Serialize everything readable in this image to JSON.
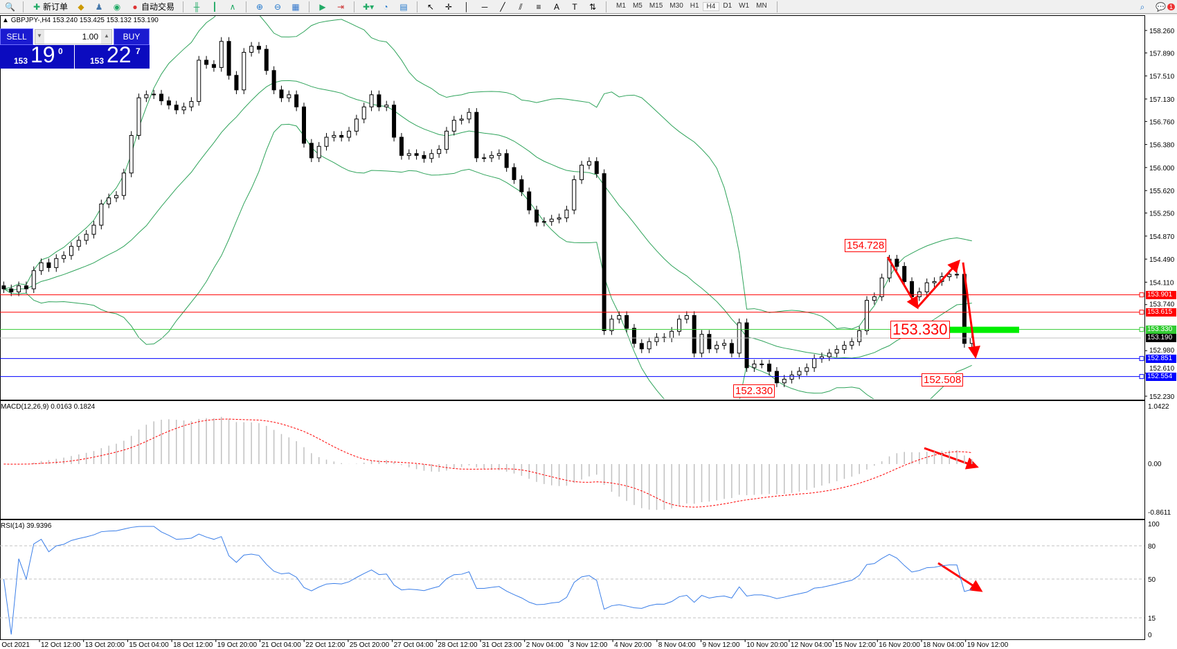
{
  "toolbar": {
    "new_order": "新订单",
    "auto_trading": "自动交易",
    "timeframes": [
      "M1",
      "M5",
      "M15",
      "M30",
      "H1",
      "H4",
      "D1",
      "W1",
      "MN"
    ],
    "active_timeframe": "H4",
    "notification_count": "1"
  },
  "chart": {
    "header": "GBPJPY-,H4  153.240 153.425 153.132 153.190",
    "symbol": "GBPJPY-",
    "timeframe": "H4"
  },
  "one_click": {
    "sell_label": "SELL",
    "buy_label": "BUY",
    "lot": "1.00",
    "sell_small": "153",
    "sell_big": "19",
    "sell_pip": "0",
    "buy_small": "153",
    "buy_big": "22",
    "buy_pip": "7"
  },
  "annotations": {
    "high": "154.728",
    "mid": "153.330",
    "low_right": "152.508",
    "low_left": "152.330"
  },
  "levels": [
    {
      "price": "153.901",
      "color": "#ff0000"
    },
    {
      "price": "153.615",
      "color": "#ff0000"
    },
    {
      "price": "153.330",
      "color": "#33cc33"
    },
    {
      "price": "153.190",
      "color": "#000000",
      "line": "#c0c0c0"
    },
    {
      "price": "152.851",
      "color": "#0000ff"
    },
    {
      "price": "152.554",
      "color": "#0000ff"
    }
  ],
  "chart_data": {
    "type": "candlestick",
    "price_axis": {
      "range": [
        152.23,
        158.26
      ],
      "ticks": [
        "158.260",
        "157.890",
        "157.510",
        "157.130",
        "156.760",
        "156.380",
        "156.000",
        "155.620",
        "155.250",
        "154.870",
        "154.490",
        "154.110",
        "153.740",
        "152.980",
        "152.610",
        "152.230"
      ]
    },
    "time_labels": [
      "1 Oct 2021",
      "12 Oct 12:00",
      "13 Oct 20:00",
      "15 Oct 04:00",
      "18 Oct 12:00",
      "19 Oct 20:00",
      "21 Oct 04:00",
      "22 Oct 12:00",
      "25 Oct 20:00",
      "27 Oct 04:00",
      "28 Oct 12:00",
      "31 Oct 23:00",
      "2 Nov 04:00",
      "3 Nov 12:00",
      "4 Nov 20:00",
      "8 Nov 04:00",
      "9 Nov 12:00",
      "10 Nov 20:00",
      "12 Nov 04:00",
      "15 Nov 12:00",
      "16 Nov 20:00",
      "18 Nov 04:00",
      "19 Nov 12:00"
    ],
    "close": [
      154.0,
      153.95,
      154.05,
      154.0,
      154.3,
      154.43,
      154.35,
      154.5,
      154.55,
      154.7,
      154.8,
      154.9,
      155.05,
      155.4,
      155.5,
      155.54,
      155.91,
      156.53,
      157.15,
      157.2,
      157.21,
      157.1,
      157.03,
      156.95,
      157.0,
      157.09,
      157.77,
      157.7,
      157.65,
      158.08,
      157.52,
      157.28,
      157.9,
      158.0,
      157.95,
      157.6,
      157.28,
      157.15,
      157.2,
      157.0,
      156.4,
      156.16,
      156.35,
      156.5,
      156.53,
      156.5,
      156.6,
      156.8,
      157.0,
      157.2,
      157.0,
      157.03,
      156.5,
      156.2,
      156.23,
      156.2,
      156.15,
      156.23,
      156.3,
      156.6,
      156.78,
      156.8,
      156.91,
      156.16,
      156.16,
      156.2,
      156.23,
      156.0,
      155.8,
      155.6,
      155.3,
      155.1,
      155.11,
      155.15,
      155.17,
      155.3,
      155.8,
      156.04,
      156.1,
      155.9,
      153.31,
      153.5,
      153.56,
      153.35,
      153.1,
      153.01,
      153.13,
      153.2,
      153.19,
      153.3,
      153.5,
      153.56,
      152.94,
      153.25,
      153.01,
      153.07,
      153.1,
      152.94,
      153.44,
      152.7,
      152.76,
      152.76,
      152.64,
      152.45,
      152.51,
      152.58,
      152.64,
      152.7,
      152.85,
      152.88,
      152.94,
      153.0,
      153.07,
      153.13,
      153.31,
      153.81,
      153.87,
      154.18,
      154.49,
      154.37,
      154.12,
      153.87,
      153.95,
      154.1,
      154.12,
      154.2,
      154.24,
      154.24,
      153.1,
      153.19
    ],
    "indicators": {
      "bollinger": {
        "color": "#2ea35a"
      },
      "macd": {
        "label": "MACD(12,26,9) 0.0163 0.1824",
        "range": [
          -0.8611,
          1.0422
        ],
        "ticks": [
          "1.0422",
          "0.00",
          "-0.8611"
        ],
        "hist_color": "#c0c0c0",
        "signal_color": "#ff0000"
      },
      "rsi": {
        "label": "RSI(14) 39.9396",
        "levels": [
          80,
          50,
          15
        ],
        "ticks": [
          "100",
          "80",
          "50",
          "15",
          "0"
        ],
        "color": "#3a7ee8"
      }
    }
  }
}
